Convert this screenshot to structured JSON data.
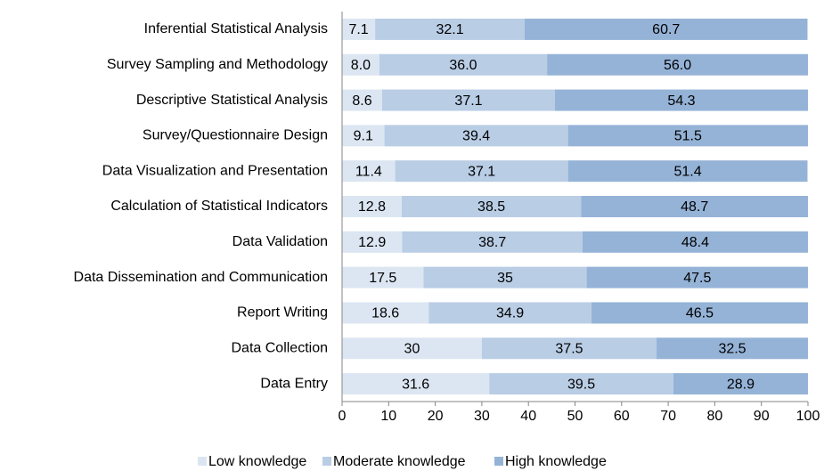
{
  "chart_data": {
    "type": "stacked-bar-horizontal",
    "categories": [
      "Inferential Statistical Analysis",
      "Survey Sampling and Methodology",
      "Descriptive Statistical Analysis",
      "Survey/Questionnaire Design",
      "Data Visualization and Presentation",
      "Calculation of Statistical Indicators",
      "Data Validation",
      "Data Dissemination and Communication",
      "Report Writing",
      "Data Collection",
      "Data Entry"
    ],
    "series": [
      {
        "name": "Low knowledge",
        "color": "#dce6f2",
        "values": [
          7.1,
          8.0,
          8.6,
          9.1,
          11.4,
          12.8,
          12.9,
          17.5,
          18.6,
          30,
          31.6
        ],
        "value_labels": [
          "7.1",
          "8.0",
          "8.6",
          "9.1",
          "11.4",
          "12.8",
          "12.9",
          "17.5",
          "18.6",
          "30",
          "31.6"
        ]
      },
      {
        "name": "Moderate knowledge",
        "color": "#b9cde5",
        "values": [
          32.1,
          36.0,
          37.1,
          39.4,
          37.1,
          38.5,
          38.7,
          35,
          34.9,
          37.5,
          39.5
        ],
        "value_labels": [
          "32.1",
          "36.0",
          "37.1",
          "39.4",
          "37.1",
          "38.5",
          "38.7",
          "35",
          "34.9",
          "37.5",
          "39.5"
        ]
      },
      {
        "name": "High knowledge",
        "color": "#95b3d7",
        "values": [
          60.7,
          56.0,
          54.3,
          51.5,
          51.4,
          48.7,
          48.4,
          47.5,
          46.5,
          32.5,
          28.9
        ],
        "value_labels": [
          "60.7",
          "56.0",
          "54.3",
          "51.5",
          "51.4",
          "48.7",
          "48.4",
          "47.5",
          "46.5",
          "32.5",
          "28.9"
        ]
      }
    ],
    "xlim": [
      0,
      100
    ],
    "xticks": [
      0,
      10,
      20,
      30,
      40,
      50,
      60,
      70,
      80,
      90,
      100
    ],
    "legend": "bottom"
  }
}
